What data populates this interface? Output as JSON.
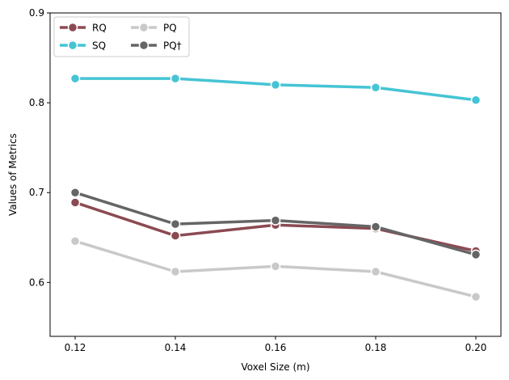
{
  "chart_data": {
    "type": "line",
    "title": "",
    "xlabel": "Voxel Size (m)",
    "ylabel": "Values of Metrics",
    "x": [
      0.12,
      0.14,
      0.16,
      0.18,
      0.2
    ],
    "x_tick_labels": [
      "0.12",
      "0.14",
      "0.16",
      "0.18",
      "0.20"
    ],
    "y_ticks": [
      0.6,
      0.7,
      0.8,
      0.9
    ],
    "y_tick_labels": [
      "0.6",
      "0.7",
      "0.8",
      "0.9"
    ],
    "xlim": [
      0.115,
      0.205
    ],
    "ylim": [
      0.54,
      0.9
    ],
    "grid": false,
    "legend_placement": "upper-left",
    "series": [
      {
        "name": "RQ",
        "color": "#8b4a52",
        "values": [
          0.689,
          0.652,
          0.664,
          0.66,
          0.635
        ]
      },
      {
        "name": "SQ",
        "color": "#45c4d4",
        "values": [
          0.827,
          0.827,
          0.82,
          0.817,
          0.803
        ]
      },
      {
        "name": "PQ",
        "color": "#c9c9c9",
        "values": [
          0.646,
          0.612,
          0.618,
          0.612,
          0.584
        ]
      },
      {
        "name": "PQ†",
        "color": "#656565",
        "values": [
          0.7,
          0.665,
          0.669,
          0.662,
          0.631
        ]
      }
    ]
  }
}
